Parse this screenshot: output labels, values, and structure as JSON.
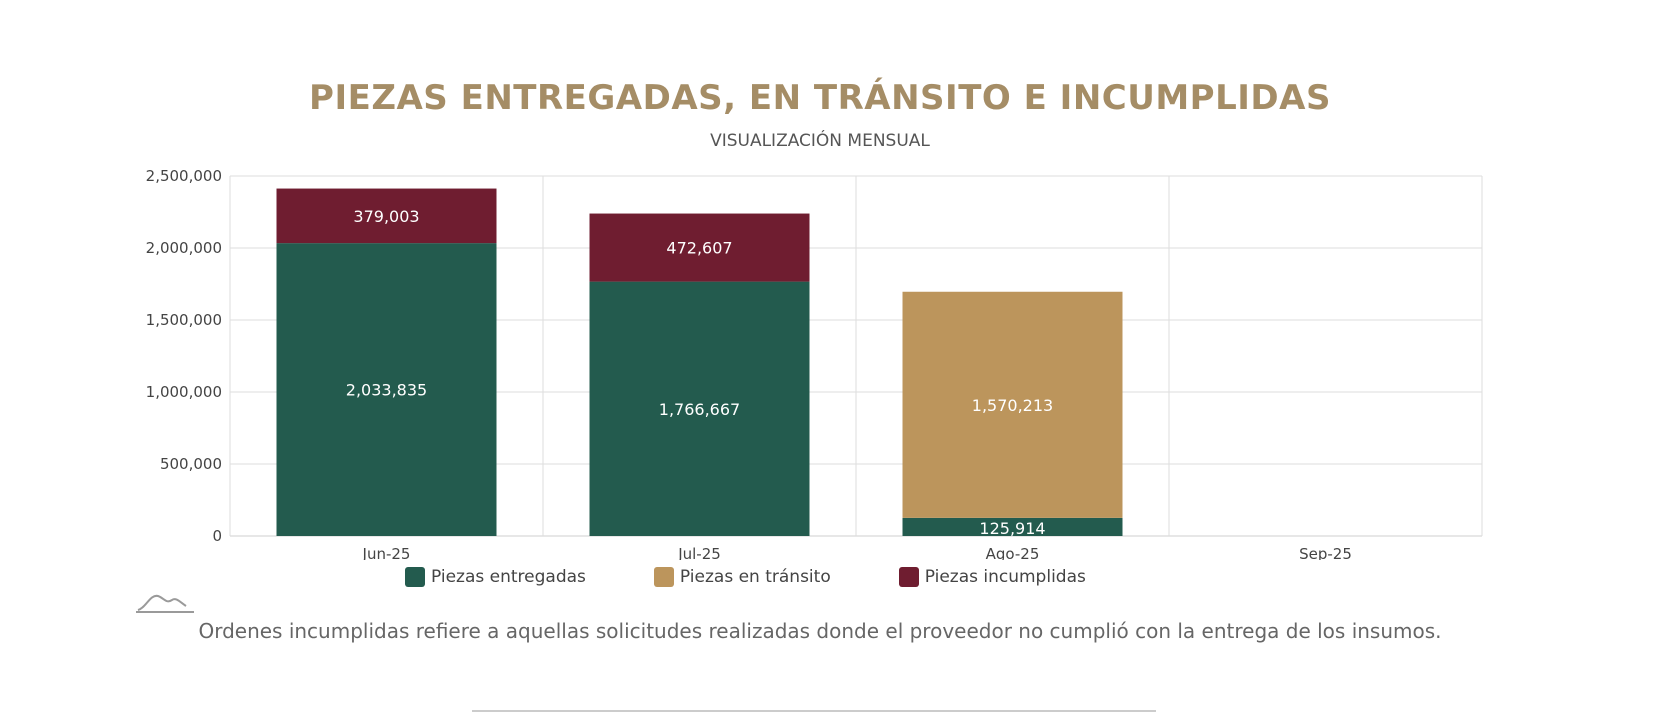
{
  "header": {
    "title": "PIEZAS ENTREGADAS, EN TRÁNSITO E INCUMPLIDAS",
    "subtitle": "VISUALIZACIÓN MENSUAL"
  },
  "chart_data": {
    "type": "bar",
    "stacked": true,
    "title": "PIEZAS ENTREGADAS, EN TRÁNSITO E INCUMPLIDAS",
    "subtitle": "VISUALIZACIÓN MENSUAL",
    "xlabel": "",
    "ylabel": "",
    "categories": [
      "Jun-25",
      "Jul-25",
      "Ago-25",
      "Sep-25"
    ],
    "series": [
      {
        "name": "Piezas entregadas",
        "color": "#235b4e",
        "values": [
          2033835,
          1766667,
          125914,
          null
        ]
      },
      {
        "name": "Piezas en tránsito",
        "color": "#bc955c",
        "values": [
          null,
          null,
          1570213,
          null
        ]
      },
      {
        "name": "Piezas incumplidas",
        "color": "#6f1d30",
        "values": [
          379003,
          472607,
          null,
          null
        ]
      }
    ],
    "value_labels": [
      [
        "2,033,835",
        "1,766,667",
        "125,914",
        ""
      ],
      [
        "",
        "",
        "1,570,213",
        ""
      ],
      [
        "379,003",
        "472,607",
        "",
        ""
      ]
    ],
    "yticks": [
      0,
      500000,
      1000000,
      1500000,
      2000000,
      2500000
    ],
    "ytick_labels": [
      "0",
      "500,000",
      "1,000,000",
      "1,500,000",
      "2,000,000",
      "2,500,000"
    ],
    "ylim": [
      0,
      2500000
    ],
    "grid": true,
    "legend_position": "bottom"
  },
  "legend": {
    "items": [
      {
        "label": "Piezas entregadas",
        "color": "#235b4e"
      },
      {
        "label": "Piezas en tránsito",
        "color": "#bc955c"
      },
      {
        "label": "Piezas incumplidas",
        "color": "#6f1d30"
      }
    ]
  },
  "footer": {
    "logo_icon": "mountain-logo-icon",
    "note": "Ordenes incumplidas refiere a aquellas solicitudes realizadas donde el proveedor no cumplió con la entrega de los insumos."
  }
}
